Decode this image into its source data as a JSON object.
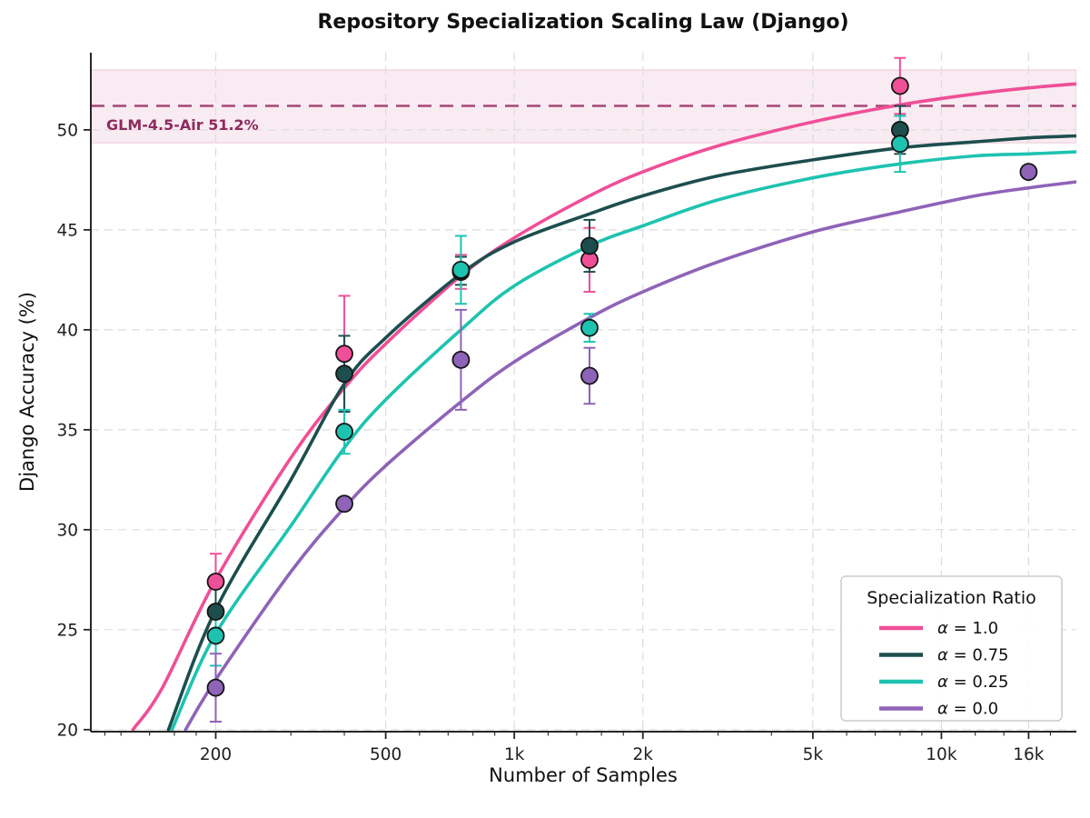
{
  "chart_data": {
    "type": "line",
    "title": "Repository Specialization Scaling Law (Django)",
    "xlabel": "Number of Samples",
    "ylabel": "Django Accuracy (%)",
    "x_scale": "log",
    "x_range": [
      102,
      20700
    ],
    "y_range": [
      19.9,
      53.86
    ],
    "x_ticks": [
      {
        "value": 200,
        "label": "200"
      },
      {
        "value": 500,
        "label": "500"
      },
      {
        "value": 1000,
        "label": "1k"
      },
      {
        "value": 2000,
        "label": "2k"
      },
      {
        "value": 5000,
        "label": "5k"
      },
      {
        "value": 10000,
        "label": "10k"
      },
      {
        "value": 16000,
        "label": "16k"
      }
    ],
    "x_minor_ticks": [
      110,
      120,
      140,
      160,
      180,
      300,
      400,
      600,
      700,
      800,
      900,
      1200,
      1400,
      1600,
      1800,
      3000,
      4000,
      6000,
      7000,
      8000,
      9000,
      12000,
      14000,
      18000
    ],
    "y_ticks": [
      20,
      25,
      30,
      35,
      40,
      45,
      50
    ],
    "grid": "dashed",
    "legend": {
      "title": "Specialization Ratio",
      "position": "lower right"
    },
    "reference_line": {
      "label": "GLM-4.5-Air 51.2%",
      "value": 51.2,
      "band": [
        49.35,
        53.0
      ],
      "line_color": "#A64677",
      "text_color": "#8E2B5E",
      "band_fill": "rgba(199,104,150,0.13)",
      "band_edge": "rgba(199,104,150,0.30)"
    },
    "series": [
      {
        "name": "α = 1.0",
        "color": "#EF4F97",
        "points": [
          {
            "x": 200,
            "y": 27.4,
            "err": 1.4
          },
          {
            "x": 400,
            "y": 38.8,
            "err": 2.9
          },
          {
            "x": 750,
            "y": 42.9,
            "err": 0.85
          },
          {
            "x": 1500,
            "y": 43.5,
            "err": 1.6
          },
          {
            "x": 8000,
            "y": 52.2,
            "err": 1.4
          }
        ],
        "curve": [
          [
            128,
            20
          ],
          [
            150,
            22.1
          ],
          [
            200,
            27.5
          ],
          [
            300,
            33.6
          ],
          [
            400,
            37.1
          ],
          [
            500,
            39.3
          ],
          [
            750,
            42.7
          ],
          [
            1000,
            44.6
          ],
          [
            1500,
            46.7
          ],
          [
            2000,
            47.9
          ],
          [
            3000,
            49.2
          ],
          [
            5000,
            50.4
          ],
          [
            8000,
            51.25
          ],
          [
            12000,
            51.8
          ],
          [
            16000,
            52.1
          ],
          [
            20700,
            52.3
          ]
        ]
      },
      {
        "name": "α = 0.75",
        "color": "#1D4E4E",
        "points": [
          {
            "x": 200,
            "y": 25.9,
            "err": 1.2
          },
          {
            "x": 400,
            "y": 37.8,
            "err": 1.9
          },
          {
            "x": 750,
            "y": 42.95,
            "err": 0.7
          },
          {
            "x": 1500,
            "y": 44.2,
            "err": 1.3
          },
          {
            "x": 8000,
            "y": 50.0,
            "err": 1.2
          }
        ],
        "curve": [
          [
            155,
            20
          ],
          [
            200,
            26.0
          ],
          [
            300,
            32.5
          ],
          [
            400,
            37.3
          ],
          [
            500,
            39.6
          ],
          [
            750,
            42.8
          ],
          [
            1000,
            44.4
          ],
          [
            1500,
            45.8
          ],
          [
            2000,
            46.7
          ],
          [
            3000,
            47.7
          ],
          [
            5000,
            48.5
          ],
          [
            8000,
            49.1
          ],
          [
            12000,
            49.4
          ],
          [
            16000,
            49.6
          ],
          [
            20700,
            49.7
          ]
        ]
      },
      {
        "name": "α = 0.25",
        "color": "#1EC3B0",
        "points": [
          {
            "x": 200,
            "y": 24.7,
            "err": 1.5
          },
          {
            "x": 400,
            "y": 34.9,
            "err": 1.1
          },
          {
            "x": 750,
            "y": 43.0,
            "err": 1.7
          },
          {
            "x": 1500,
            "y": 40.1,
            "err": 0.7
          },
          {
            "x": 8000,
            "y": 49.3,
            "err": 1.4
          }
        ],
        "curve": [
          [
            158,
            20
          ],
          [
            200,
            24.8
          ],
          [
            300,
            30.2
          ],
          [
            400,
            34.1
          ],
          [
            500,
            36.5
          ],
          [
            750,
            40.0
          ],
          [
            1000,
            42.2
          ],
          [
            1500,
            44.2
          ],
          [
            2000,
            45.2
          ],
          [
            3000,
            46.5
          ],
          [
            5000,
            47.6
          ],
          [
            8000,
            48.3
          ],
          [
            12000,
            48.7
          ],
          [
            16000,
            48.8
          ],
          [
            20700,
            48.9
          ]
        ]
      },
      {
        "name": "α = 0.0",
        "color": "#8F63B8",
        "points": [
          {
            "x": 200,
            "y": 22.1,
            "err": 1.7
          },
          {
            "x": 400,
            "y": 31.3,
            "err": 0.25
          },
          {
            "x": 750,
            "y": 38.5,
            "err": 2.5
          },
          {
            "x": 1500,
            "y": 37.7,
            "err": 1.4
          },
          {
            "x": 16000,
            "y": 47.9,
            "err": 0.25
          }
        ],
        "curve": [
          [
            170,
            20
          ],
          [
            200,
            22.5
          ],
          [
            300,
            27.9
          ],
          [
            400,
            31.1
          ],
          [
            500,
            33.2
          ],
          [
            750,
            36.4
          ],
          [
            1000,
            38.4
          ],
          [
            1500,
            40.6
          ],
          [
            2000,
            41.9
          ],
          [
            3000,
            43.4
          ],
          [
            5000,
            44.9
          ],
          [
            8000,
            45.9
          ],
          [
            12000,
            46.7
          ],
          [
            16000,
            47.1
          ],
          [
            20700,
            47.4
          ]
        ]
      }
    ]
  }
}
